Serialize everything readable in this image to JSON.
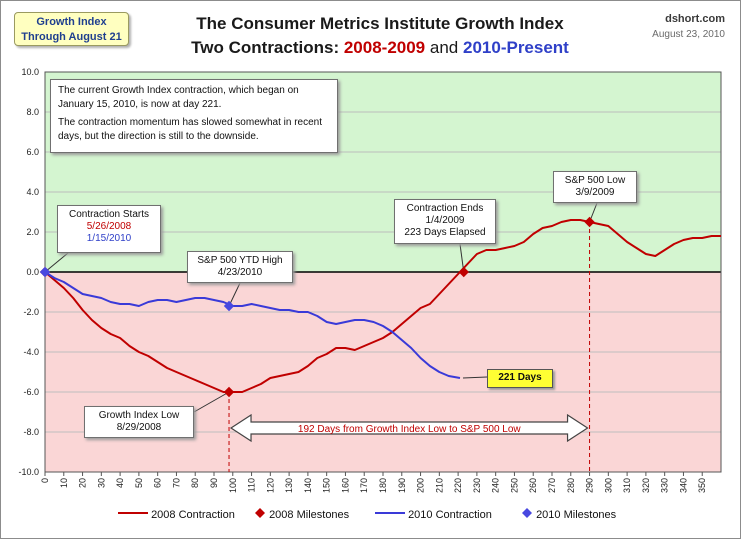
{
  "badge": {
    "line1": "Growth Index",
    "line2": "Through August 21"
  },
  "title": {
    "line1": "The Consumer Metrics Institute Growth Index",
    "line2_prefix": "Two Contractions:",
    "line2_red": "2008-2009",
    "line2_and": "and",
    "line2_blue": "2010-Present"
  },
  "source": {
    "site": "dshort.com",
    "date": "August 23, 2010"
  },
  "note": {
    "p1": "The current Growth Index contraction, which began on January 15, 2010, is now at day 221.",
    "p2": "The contraction momentum has slowed somewhat in recent days, but the direction is still to the downside."
  },
  "callouts": {
    "contraction_starts": {
      "title": "Contraction Starts",
      "red": "5/26/2008",
      "blue": "1/15/2010"
    },
    "sp500_ytd_high": {
      "line1": "S&P 500 YTD High",
      "line2": "4/23/2010"
    },
    "contraction_ends": {
      "line1": "Contraction Ends",
      "line2": "1/4/2009",
      "line3": "223 Days Elapsed"
    },
    "sp500_low": {
      "line1": "S&P 500 Low",
      "line2": "3/9/2009"
    },
    "growth_index_low": {
      "line1": "Growth Index Low",
      "line2": "8/29/2008"
    },
    "days_221": "221 Days",
    "arrow": "192 Days from Growth Index Low to S&P 500 Low"
  },
  "colors": {
    "red_line": "#c00000",
    "blue_line": "#3a3ad8",
    "positive_zone": "#d4f5d0",
    "negative_zone": "#fad6d6",
    "milestone_blue": "#4848e0",
    "milestone_red": "#c00000"
  },
  "chart_data": {
    "type": "line",
    "xlim": [
      0,
      360
    ],
    "ylim": [
      -10,
      10
    ],
    "x_ticks": [
      0,
      10,
      20,
      30,
      40,
      50,
      60,
      70,
      80,
      90,
      100,
      110,
      120,
      130,
      140,
      150,
      160,
      170,
      180,
      190,
      200,
      210,
      220,
      230,
      240,
      250,
      260,
      270,
      280,
      290,
      300,
      310,
      320,
      330,
      340,
      350
    ],
    "y_ticks": [
      "10.0",
      "8.0",
      "6.0",
      "4.0",
      "2.0",
      "0.0",
      "-2.0",
      "-4.0",
      "-6.0",
      "-8.0",
      "-10.0"
    ],
    "grid": "horizontal",
    "legend_placement": "bottom",
    "series": [
      {
        "name": "2008 Contraction",
        "x": [
          0,
          5,
          10,
          15,
          20,
          25,
          30,
          35,
          40,
          45,
          50,
          55,
          60,
          65,
          70,
          75,
          80,
          85,
          90,
          95,
          100,
          105,
          110,
          115,
          120,
          125,
          130,
          135,
          140,
          145,
          150,
          155,
          160,
          165,
          170,
          175,
          180,
          185,
          190,
          195,
          200,
          205,
          210,
          215,
          220,
          225,
          230,
          235,
          240,
          245,
          250,
          255,
          260,
          265,
          270,
          275,
          280,
          285,
          290,
          295,
          300,
          305,
          310,
          315,
          320,
          325,
          330,
          335,
          340,
          345,
          350,
          355,
          360
        ],
        "y": [
          0,
          -0.4,
          -0.8,
          -1.3,
          -1.9,
          -2.4,
          -2.8,
          -3.1,
          -3.3,
          -3.7,
          -4.0,
          -4.2,
          -4.5,
          -4.8,
          -5.0,
          -5.2,
          -5.4,
          -5.6,
          -5.8,
          -6.0,
          -6.0,
          -6.0,
          -5.8,
          -5.6,
          -5.3,
          -5.2,
          -5.1,
          -5.0,
          -4.7,
          -4.3,
          -4.1,
          -3.8,
          -3.8,
          -3.9,
          -3.7,
          -3.5,
          -3.3,
          -3.0,
          -2.6,
          -2.2,
          -1.8,
          -1.6,
          -1.1,
          -0.6,
          -0.1,
          0.4,
          0.9,
          1.1,
          1.1,
          1.2,
          1.3,
          1.5,
          1.9,
          2.2,
          2.3,
          2.5,
          2.6,
          2.6,
          2.5,
          2.4,
          2.3,
          1.9,
          1.5,
          1.2,
          0.9,
          0.8,
          1.1,
          1.4,
          1.6,
          1.7,
          1.7,
          1.8,
          1.8
        ]
      },
      {
        "name": "2010 Contraction",
        "x": [
          0,
          5,
          10,
          15,
          20,
          25,
          30,
          35,
          40,
          45,
          50,
          55,
          60,
          65,
          70,
          75,
          80,
          85,
          90,
          95,
          100,
          105,
          110,
          115,
          120,
          125,
          130,
          135,
          140,
          145,
          150,
          155,
          160,
          165,
          170,
          175,
          180,
          185,
          190,
          195,
          200,
          205,
          210,
          215,
          221
        ],
        "y": [
          0,
          -0.3,
          -0.5,
          -0.8,
          -1.1,
          -1.2,
          -1.3,
          -1.5,
          -1.6,
          -1.6,
          -1.7,
          -1.5,
          -1.4,
          -1.4,
          -1.5,
          -1.4,
          -1.3,
          -1.3,
          -1.4,
          -1.5,
          -1.7,
          -1.7,
          -1.6,
          -1.7,
          -1.8,
          -1.9,
          -1.9,
          -2.0,
          -2.0,
          -2.2,
          -2.5,
          -2.6,
          -2.5,
          -2.4,
          -2.4,
          -2.5,
          -2.7,
          -3.0,
          -3.4,
          -3.8,
          -4.3,
          -4.7,
          -5.0,
          -5.2,
          -5.3
        ]
      }
    ],
    "milestones": [
      {
        "series": "2008 Milestones",
        "x": [
          0,
          98,
          223,
          290
        ],
        "y": [
          0,
          -6.0,
          0.0,
          2.5
        ]
      },
      {
        "series": "2010 Milestones",
        "x": [
          0,
          98
        ],
        "y": [
          0,
          -1.7
        ]
      }
    ],
    "legend": [
      "2008 Contraction",
      "2008 Milestones",
      "2010 Contraction",
      "2010 Milestones"
    ]
  }
}
